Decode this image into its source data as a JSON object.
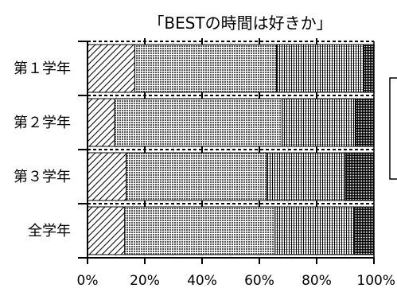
{
  "chart_data": {
    "type": "bar",
    "orientation": "horizontal",
    "stacked": true,
    "percent": true,
    "title": "「BESTの時間は好きか」",
    "categories": [
      "第１学年",
      "第２学年",
      "第３学年",
      "全学年"
    ],
    "series": [
      {
        "values": [
          16.5,
          9.5,
          13.5,
          13
        ]
      },
      {
        "values": [
          49.5,
          58.5,
          49,
          52.5
        ]
      },
      {
        "values": [
          30.5,
          25.5,
          27.5,
          27.5
        ]
      },
      {
        "values": [
          3.5,
          6.5,
          10,
          7
        ]
      }
    ],
    "x_ticks": [
      "0%",
      "20%",
      "40%",
      "60%",
      "80%",
      "100%"
    ],
    "xlim": [
      0,
      100
    ],
    "grid": true,
    "legend": "right (clipped)",
    "colors": {
      "stroke": "#000000",
      "background": "#ffffff"
    }
  }
}
